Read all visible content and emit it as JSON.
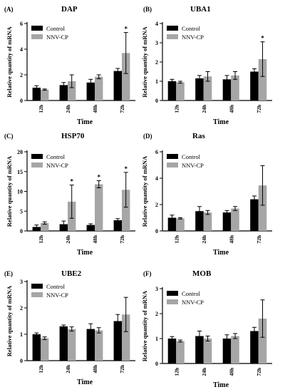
{
  "chart_data": [
    {
      "type": "bar",
      "panel": "(A)",
      "title": "DAP",
      "xlabel": "Time",
      "ylabel": "Relative quantity of mRNA",
      "ylim": [
        0,
        6
      ],
      "yticks": [
        0,
        2,
        4,
        6
      ],
      "categories": [
        "12h",
        "24h",
        "48h",
        "72h"
      ],
      "series": [
        {
          "name": "Control",
          "color": "#000000",
          "values": [
            1.0,
            1.2,
            1.4,
            2.3
          ],
          "errors": [
            0.15,
            0.2,
            0.25,
            0.2
          ]
        },
        {
          "name": "NNV-CP",
          "color": "#a6a6a6",
          "values": [
            0.85,
            1.5,
            1.85,
            3.7
          ],
          "errors": [
            0.05,
            0.5,
            0.15,
            1.6
          ]
        }
      ],
      "significance": [
        {
          "category": "72h",
          "series": "NNV-CP",
          "mark": "*"
        }
      ],
      "legend": "top-left"
    },
    {
      "type": "bar",
      "panel": "(B)",
      "title": "UBA1",
      "xlabel": "Time",
      "ylabel": "Relative quantity of mRNA",
      "ylim": [
        0,
        4
      ],
      "yticks": [
        0,
        1,
        2,
        3,
        4
      ],
      "categories": [
        "12h",
        "24h",
        "48h",
        "72h"
      ],
      "series": [
        {
          "name": "Control",
          "color": "#000000",
          "values": [
            1.0,
            1.15,
            1.1,
            1.5
          ],
          "errors": [
            0.1,
            0.15,
            0.2,
            0.15
          ]
        },
        {
          "name": "NNV-CP",
          "color": "#a6a6a6",
          "values": [
            0.95,
            1.25,
            1.3,
            2.15
          ],
          "errors": [
            0.05,
            0.25,
            0.2,
            0.9
          ]
        }
      ],
      "significance": [
        {
          "category": "72h",
          "series": "NNV-CP",
          "mark": "*"
        }
      ],
      "legend": "top-left"
    },
    {
      "type": "bar",
      "panel": "(C)",
      "title": "HSP70",
      "xlabel": "Time",
      "ylabel": "Relative quantity of mRNA",
      "ylim": [
        0,
        20
      ],
      "yticks": [
        0,
        5,
        10,
        15,
        20
      ],
      "categories": [
        "12h",
        "24h",
        "48h",
        "72h"
      ],
      "series": [
        {
          "name": "Control",
          "color": "#000000",
          "values": [
            1.0,
            1.7,
            1.5,
            2.7
          ],
          "errors": [
            0.5,
            0.8,
            0.3,
            0.4
          ]
        },
        {
          "name": "NNV-CP",
          "color": "#a6a6a6",
          "values": [
            2.0,
            7.4,
            11.8,
            10.4
          ],
          "errors": [
            0.3,
            4.2,
            0.9,
            4.4
          ]
        }
      ],
      "significance": [
        {
          "category": "24h",
          "series": "NNV-CP",
          "mark": "*"
        },
        {
          "category": "48h",
          "series": "NNV-CP",
          "mark": "*"
        },
        {
          "category": "72h",
          "series": "NNV-CP",
          "mark": "*"
        }
      ],
      "legend": "top-left"
    },
    {
      "type": "bar",
      "panel": "(D)",
      "title": "Ras",
      "xlabel": "Time",
      "ylabel": "Relative quantity of mRNA",
      "ylim": [
        0,
        6
      ],
      "yticks": [
        0,
        2,
        4,
        6
      ],
      "categories": [
        "12h",
        "24h",
        "48h",
        "72h"
      ],
      "series": [
        {
          "name": "Control",
          "color": "#000000",
          "values": [
            1.0,
            1.5,
            1.4,
            2.4
          ],
          "errors": [
            0.2,
            0.35,
            0.15,
            0.25
          ]
        },
        {
          "name": "NNV-CP",
          "color": "#a6a6a6",
          "values": [
            0.95,
            1.4,
            1.7,
            3.45
          ],
          "errors": [
            0.05,
            0.15,
            0.15,
            1.5
          ]
        }
      ],
      "significance": [],
      "legend": "top-left"
    },
    {
      "type": "bar",
      "panel": "(E)",
      "title": "UBE2",
      "xlabel": "Time",
      "ylabel": "Relative quantity of mRNA",
      "ylim": [
        0,
        3
      ],
      "yticks": [
        0,
        1,
        2,
        3
      ],
      "categories": [
        "12h",
        "24h",
        "48h",
        "72h"
      ],
      "series": [
        {
          "name": "Control",
          "color": "#000000",
          "values": [
            1.0,
            1.3,
            1.2,
            1.5
          ],
          "errors": [
            0.05,
            0.05,
            0.2,
            0.25
          ]
        },
        {
          "name": "NNV-CP",
          "color": "#a6a6a6",
          "values": [
            0.85,
            1.2,
            1.15,
            1.75
          ],
          "errors": [
            0.05,
            0.08,
            0.1,
            0.65
          ]
        }
      ],
      "significance": [],
      "legend": "top-left"
    },
    {
      "type": "bar",
      "panel": "(F)",
      "title": "MOB",
      "xlabel": "Time",
      "ylabel": "Relative quantity of mRNA",
      "ylim": [
        0,
        3
      ],
      "yticks": [
        0,
        1,
        2,
        3
      ],
      "categories": [
        "12h",
        "24h",
        "48h",
        "72h"
      ],
      "series": [
        {
          "name": "Control",
          "color": "#000000",
          "values": [
            1.0,
            1.1,
            1.0,
            1.3
          ],
          "errors": [
            0.08,
            0.2,
            0.15,
            0.15
          ]
        },
        {
          "name": "NNV-CP",
          "color": "#a6a6a6",
          "values": [
            0.9,
            1.0,
            1.1,
            1.8
          ],
          "errors": [
            0.04,
            0.1,
            0.1,
            0.75
          ]
        }
      ],
      "significance": [],
      "legend": "top-left"
    }
  ]
}
